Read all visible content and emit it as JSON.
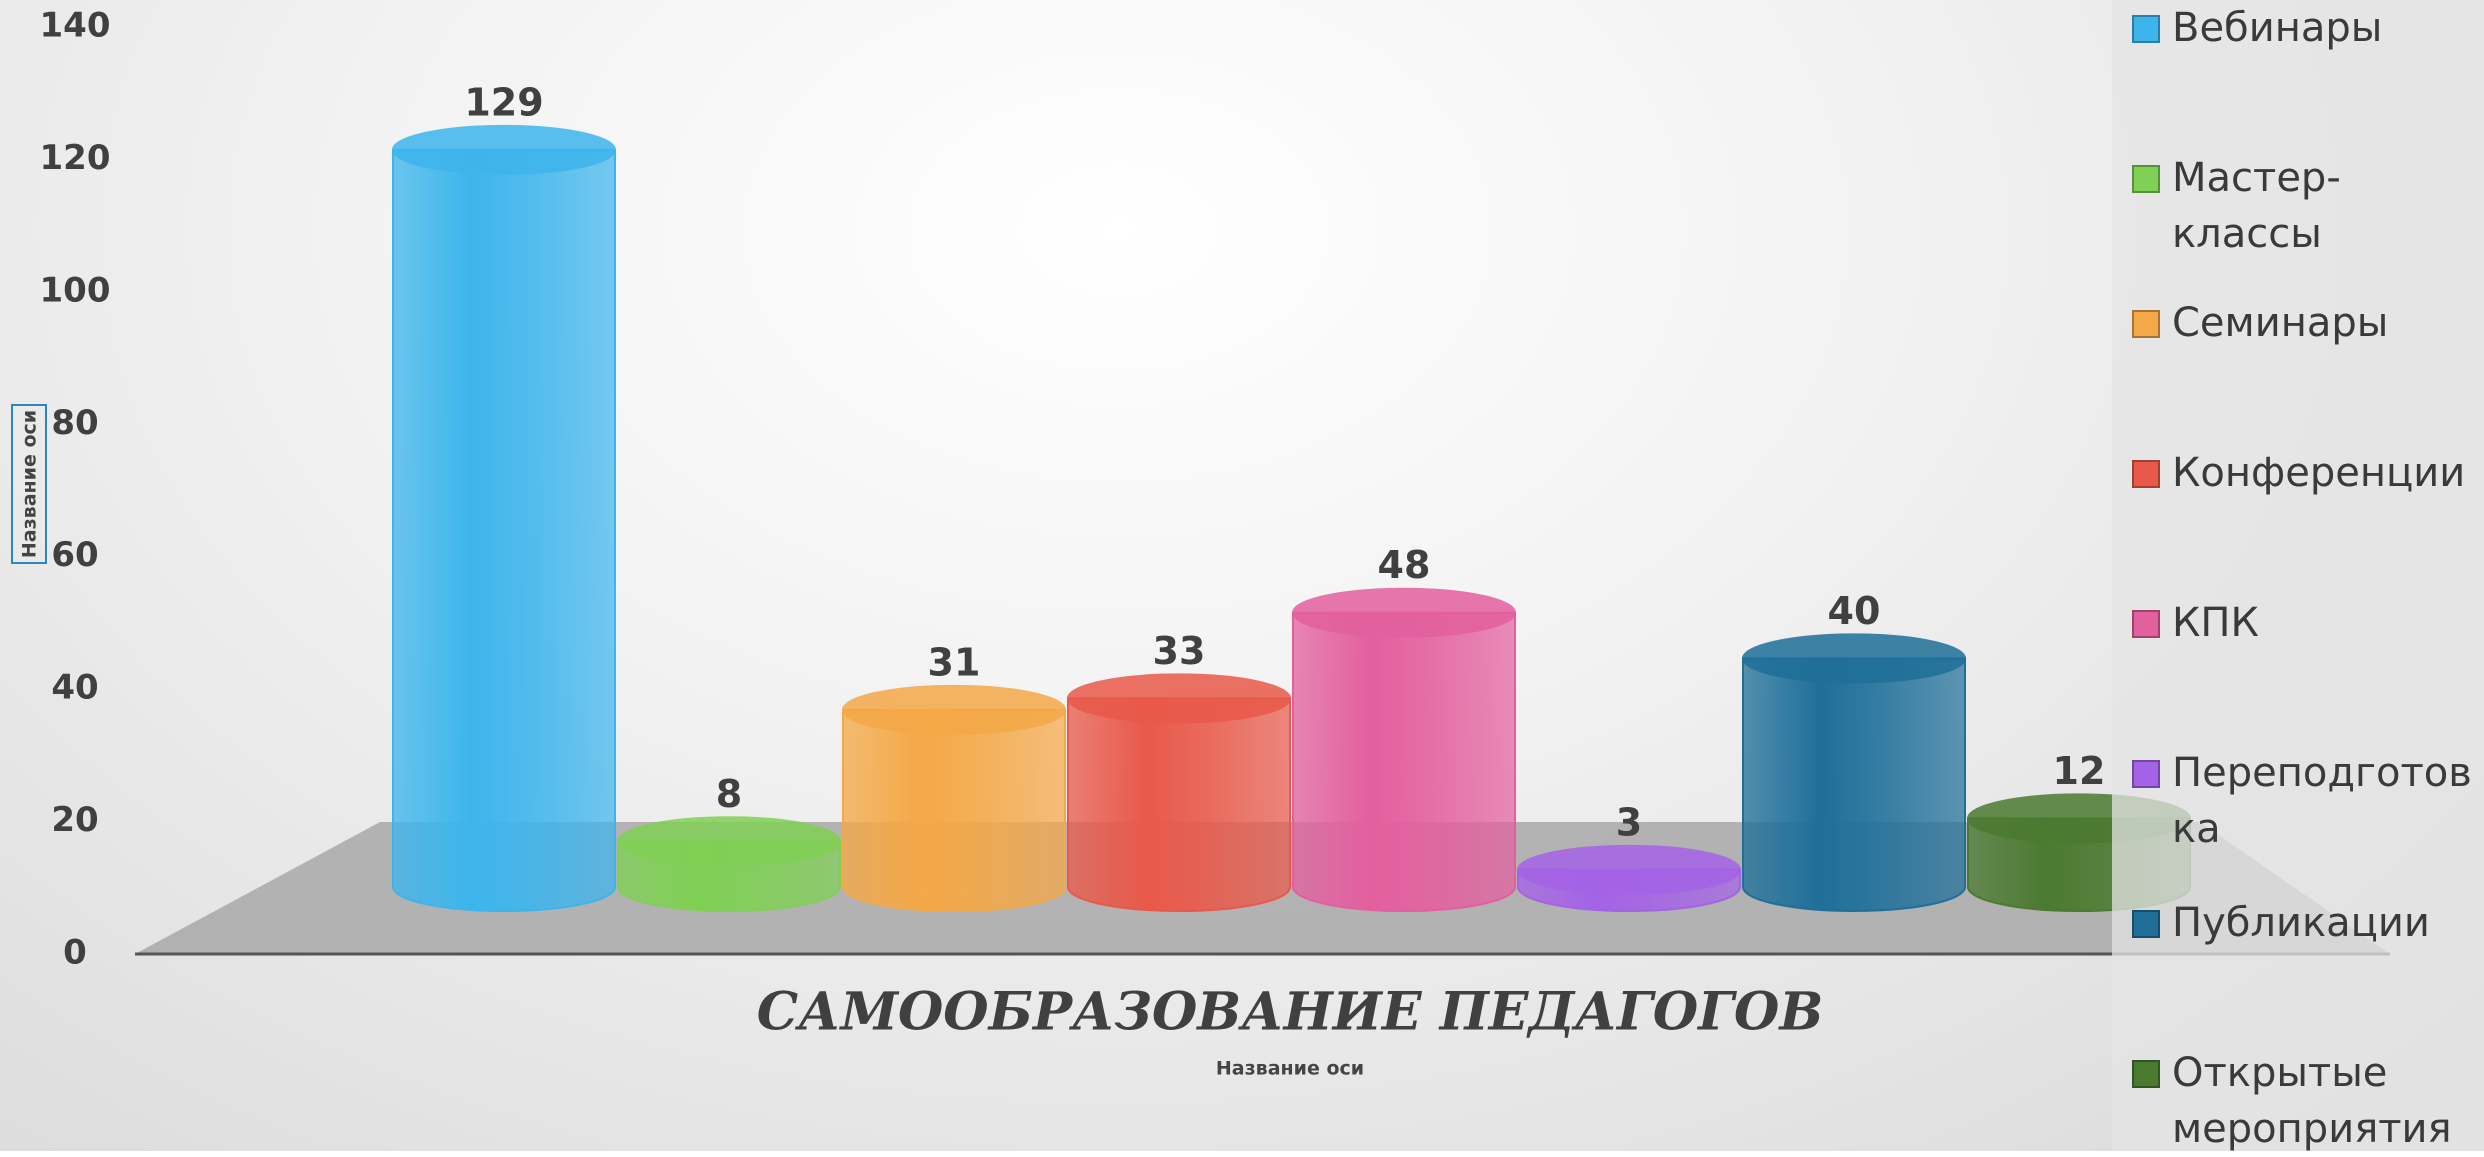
{
  "chart_data": {
    "type": "bar3d",
    "categories": [
      "САМООБРАЗОВАНИЕ ПЕДАГОГОВ"
    ],
    "x_label": "Название оси",
    "y_label": "Название оси",
    "ylim": [
      0,
      140
    ],
    "yticks": [
      0,
      20,
      40,
      60,
      80,
      100,
      120,
      140
    ],
    "grid": false,
    "legend": "right",
    "series": [
      {
        "name": "Вебинары",
        "color": "#3db5ec",
        "values": [
          129
        ]
      },
      {
        "name": "Мастер-классы",
        "color": "#80d055",
        "values": [
          8
        ]
      },
      {
        "name": "Семинары",
        "color": "#f4a847",
        "values": [
          31
        ]
      },
      {
        "name": "Конференции",
        "color": "#e8594a",
        "values": [
          33
        ]
      },
      {
        "name": "КПК",
        "color": "#e35f9e",
        "values": [
          48
        ]
      },
      {
        "name": "Переподготовка",
        "color": "#a463e6",
        "values": [
          3
        ]
      },
      {
        "name": "Публикации",
        "color": "#1f6f99",
        "values": [
          40
        ]
      },
      {
        "name": "Открытые мероприятия",
        "color": "#4b7a31",
        "values": [
          12
        ]
      }
    ]
  }
}
